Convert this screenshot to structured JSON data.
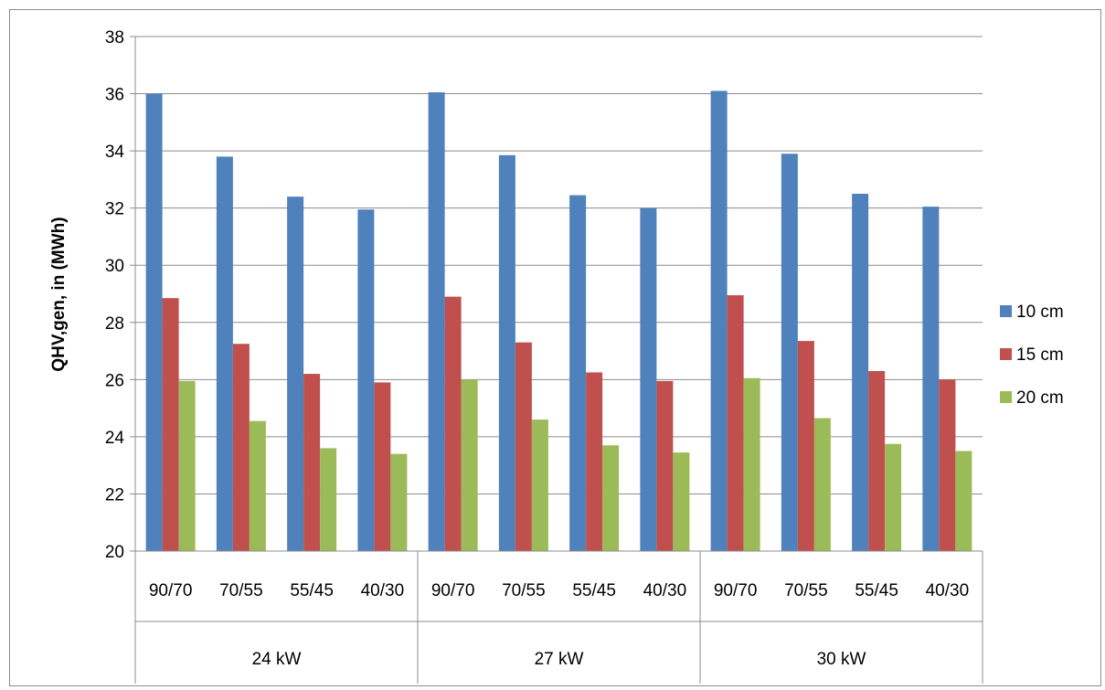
{
  "chart_data": {
    "type": "bar",
    "title": "",
    "ylabel": "QHV,gen, in (MWh)",
    "xlabel": "",
    "ylim": [
      20,
      38
    ],
    "ytick_step": 2,
    "grid": true,
    "legend_position": "right",
    "groups": [
      {
        "label": "24 kW",
        "categories": [
          "90/70",
          "70/55",
          "55/45",
          "40/30"
        ]
      },
      {
        "label": "27 kW",
        "categories": [
          "90/70",
          "70/55",
          "55/45",
          "40/30"
        ]
      },
      {
        "label": "30 kW",
        "categories": [
          "90/70",
          "70/55",
          "55/45",
          "40/30"
        ]
      }
    ],
    "categories": [
      "90/70",
      "70/55",
      "55/45",
      "40/30",
      "90/70",
      "70/55",
      "55/45",
      "40/30",
      "90/70",
      "70/55",
      "55/45",
      "40/30"
    ],
    "series": [
      {
        "name": "10 cm",
        "color": "#4f81bd",
        "values": [
          36.0,
          33.8,
          32.4,
          31.95,
          36.05,
          33.85,
          32.45,
          32.0,
          36.1,
          33.9,
          32.5,
          32.05
        ]
      },
      {
        "name": "15 cm",
        "color": "#c0504d",
        "values": [
          28.85,
          27.25,
          26.2,
          25.9,
          28.9,
          27.3,
          26.25,
          25.95,
          28.95,
          27.35,
          26.3,
          26.0
        ]
      },
      {
        "name": "20 cm",
        "color": "#9bbb59",
        "values": [
          25.95,
          24.55,
          23.6,
          23.4,
          26.0,
          24.6,
          23.7,
          23.45,
          26.05,
          24.65,
          23.75,
          23.5
        ]
      }
    ]
  }
}
